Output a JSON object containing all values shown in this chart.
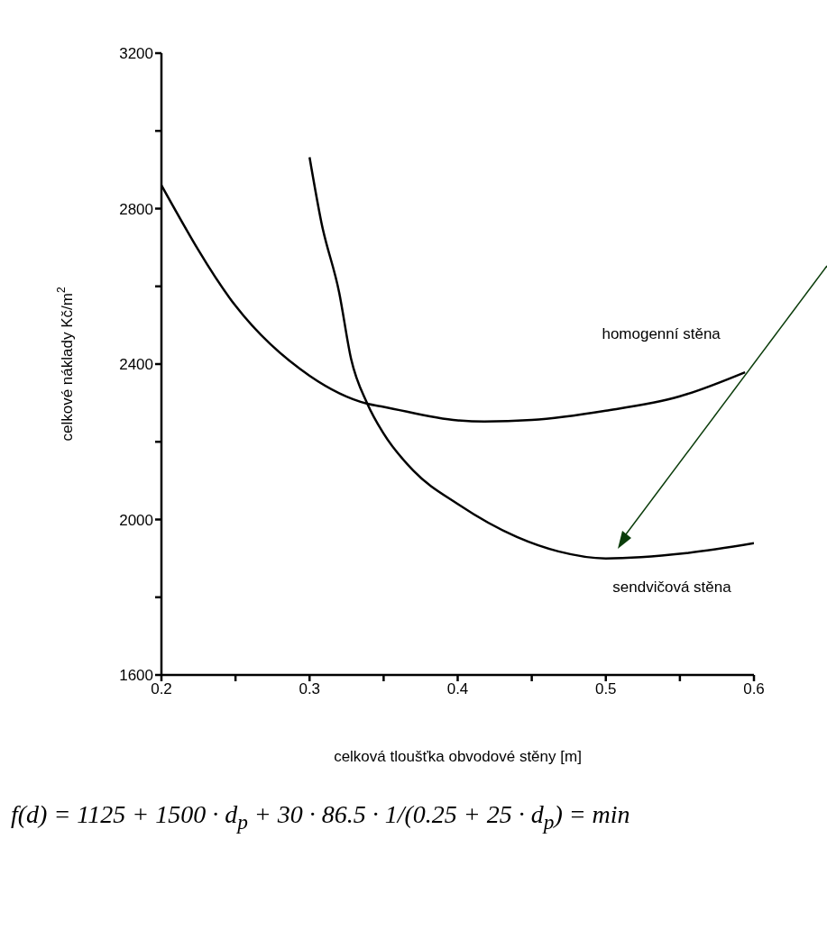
{
  "chart_data": {
    "type": "line",
    "xlabel": "celková tloušťka obvodové stěny [m]",
    "ylabel": "celkové náklady  Kč/m$^{2}$",
    "xlim": [
      0.2,
      0.6
    ],
    "xticks": [
      0.2,
      {
        "value": 0.25,
        "label": null
      },
      0.3,
      {
        "value": 0.35,
        "label": null
      },
      0.4,
      {
        "value": 0.45,
        "label": null
      },
      0.5,
      {
        "value": 0.55,
        "label": null
      },
      0.6
    ],
    "ylim": [
      1600,
      3200
    ],
    "yticks": [
      1600,
      {
        "value": 1800,
        "label": null
      },
      2000,
      {
        "value": 2200,
        "label": null
      },
      2400,
      {
        "value": 2600,
        "label": null
      },
      2800,
      {
        "value": 3000,
        "label": null
      },
      3200
    ],
    "grid": false,
    "legend": false,
    "marker": "none",
    "line_style": "solid",
    "series": [
      {
        "name": "homogenní stěna",
        "color": "#000000",
        "x": [
          0.2,
          0.25,
          0.3,
          0.339,
          0.35,
          0.4,
          0.418,
          0.45,
          0.5,
          0.55,
          0.594
        ],
        "values": [
          2860,
          2550,
          2370,
          2298,
          2290,
          2255,
          2252,
          2256,
          2280,
          2317,
          2379
        ]
      },
      {
        "name": "sendvičová stěna",
        "color": "#000000",
        "x": [
          0.3,
          0.308,
          0.32,
          0.328,
          0.339,
          0.35,
          0.37,
          0.4,
          0.44,
          0.468,
          0.5,
          0.553,
          0.6
        ],
        "values": [
          2932,
          2764,
          2584,
          2414,
          2298,
          2221,
          2126,
          2040,
          1955,
          1918,
          1900,
          1913,
          1939
        ]
      }
    ],
    "annotations": [
      "f(d) = 1125 + 1500 · d$_{p}$ + 30 · 86.5 · 1/(0.25 + 25 · d$_{p}$) = min"
    ]
  }
}
